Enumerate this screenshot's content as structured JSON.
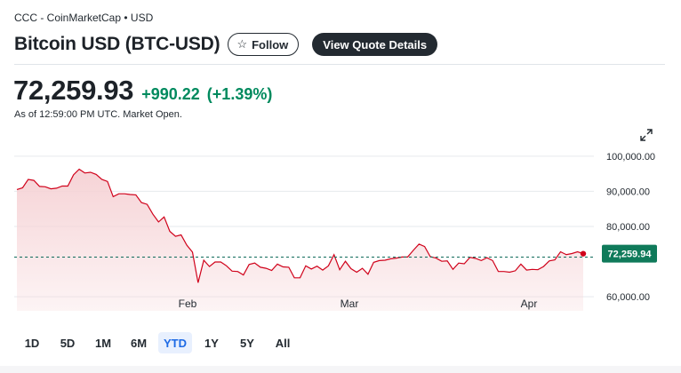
{
  "header": {
    "source": "CCC - CoinMarketCap • USD",
    "title": "Bitcoin USD (BTC-USD)",
    "follow_label": "Follow",
    "quote_label": "View Quote Details"
  },
  "quote": {
    "price": "72,259.93",
    "change": "+990.22",
    "change_pct": "(+1.39%)",
    "as_of": "As of 12:59:00 PM UTC. Market Open."
  },
  "ranges": [
    "1D",
    "5D",
    "1M",
    "6M",
    "YTD",
    "1Y",
    "5Y",
    "All"
  ],
  "active_range": "YTD",
  "colors": {
    "up": "#008a5e",
    "line": "#d0021b",
    "fill": "#f6d3d6",
    "tag": "#0f7a5a"
  },
  "chart_data": {
    "type": "area",
    "x_tick_labels": [
      "Feb",
      "Mar",
      "Apr"
    ],
    "y_tick_labels": [
      "100,000.00",
      "90,000.00",
      "80,000.00",
      "60,000.00"
    ],
    "y_ticks": [
      100000,
      90000,
      80000,
      60000
    ],
    "ylim": [
      56000,
      104000
    ],
    "reference_value": 71270,
    "current_label": "72,259.94",
    "series": [
      {
        "values": [
          90500,
          91000,
          93400,
          93100,
          91400,
          91300,
          90700,
          90900,
          91500,
          91500,
          94700,
          96300,
          95200,
          95400,
          94800,
          93400,
          92800,
          88500,
          89300,
          89300,
          89100,
          89000,
          86800,
          86300,
          83500,
          81300,
          82700,
          78600,
          77200,
          77600,
          74700,
          72700,
          64000,
          70400,
          68600,
          69900,
          69900,
          68800,
          67300,
          67200,
          66200,
          69200,
          69600,
          68400,
          68100,
          67500,
          69300,
          68500,
          68400,
          65400,
          65400,
          68800,
          67900,
          68700,
          67600,
          68800,
          72000,
          67700,
          70100,
          68000,
          67000,
          68100,
          66400,
          69800,
          70300,
          70400,
          70800,
          71000,
          71300,
          71300,
          73200,
          75000,
          74300,
          71400,
          71000,
          70100,
          70200,
          67800,
          69600,
          69400,
          71200,
          70900,
          70300,
          71100,
          70300,
          67200,
          67200,
          67000,
          67400,
          69300,
          67600,
          67800,
          67700,
          68600,
          70200,
          70500,
          72800,
          72000,
          72300,
          72800,
          72260
        ]
      }
    ]
  }
}
